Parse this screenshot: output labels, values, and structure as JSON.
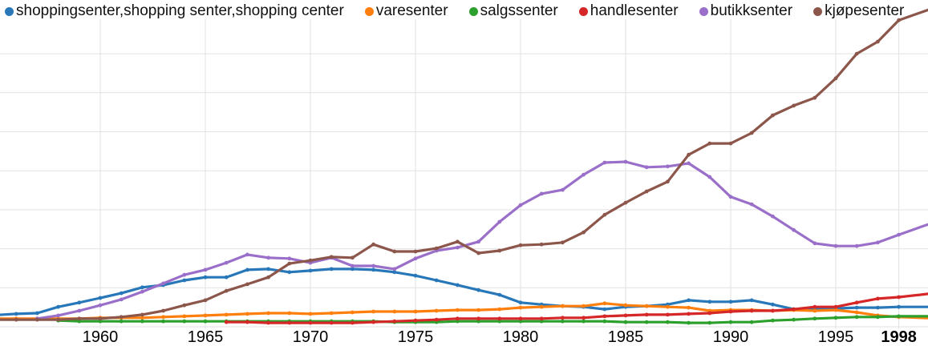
{
  "legend": {
    "items": [
      {
        "id": "shoppingsenter",
        "label": "shoppingsenter,shopping senter,shopping center",
        "color": "#2878b9"
      },
      {
        "id": "varesenter",
        "label": "varesenter",
        "color": "#ff7f0e"
      },
      {
        "id": "salgssenter",
        "label": "salgssenter",
        "color": "#2ca02c"
      },
      {
        "id": "handlesenter",
        "label": "handlesenter",
        "color": "#d62728"
      },
      {
        "id": "butikksenter",
        "label": "butikksenter",
        "color": "#9a6fc9"
      },
      {
        "id": "kjopesenter",
        "label": "kjøpesenter",
        "color": "#8c564b"
      }
    ]
  },
  "chart_data": {
    "type": "line",
    "title": "",
    "xlabel": "",
    "ylabel": "",
    "grid": true,
    "legend_position": "top",
    "y_units": "relative frequency (y axis unlabeled; 1.0 = one horizontal gridline interval)",
    "ylim": [
      0,
      8
    ],
    "xlim": [
      1955,
      1999
    ],
    "x_ticks": [
      {
        "label": "1960",
        "year": 1960,
        "bold": false
      },
      {
        "label": "1965",
        "year": 1965,
        "bold": false
      },
      {
        "label": "1970",
        "year": 1970,
        "bold": false
      },
      {
        "label": "1975",
        "year": 1975,
        "bold": false
      },
      {
        "label": "1980",
        "year": 1980,
        "bold": false
      },
      {
        "label": "1985",
        "year": 1985,
        "bold": false
      },
      {
        "label": "1990",
        "year": 1990,
        "bold": false
      },
      {
        "label": "1995",
        "year": 1995,
        "bold": false
      },
      {
        "label": "1998",
        "year": 1998,
        "bold": true
      }
    ],
    "series": [
      {
        "id": "shoppingsenter",
        "name": "shoppingsenter,shopping senter,shopping center",
        "color": "#2878b9",
        "start_year": 1955,
        "values": [
          0.3,
          0.33,
          0.35,
          0.51,
          0.62,
          0.74,
          0.86,
          1.01,
          1.07,
          1.19,
          1.27,
          1.27,
          1.46,
          1.48,
          1.4,
          1.44,
          1.48,
          1.48,
          1.46,
          1.4,
          1.31,
          1.19,
          1.07,
          0.94,
          0.82,
          0.62,
          0.57,
          0.53,
          0.51,
          0.45,
          0.51,
          0.53,
          0.57,
          0.68,
          0.64,
          0.64,
          0.68,
          0.57,
          0.45,
          0.47,
          0.47,
          0.49,
          0.49,
          0.51,
          0.51
        ]
      },
      {
        "id": "varesenter",
        "name": "varesenter",
        "color": "#ff7f0e",
        "start_year": 1955,
        "values": [
          0.21,
          0.21,
          0.21,
          0.21,
          0.21,
          0.23,
          0.23,
          0.23,
          0.25,
          0.27,
          0.29,
          0.31,
          0.33,
          0.35,
          0.35,
          0.33,
          0.35,
          0.37,
          0.39,
          0.39,
          0.39,
          0.41,
          0.43,
          0.43,
          0.45,
          0.49,
          0.51,
          0.53,
          0.53,
          0.6,
          0.55,
          0.53,
          0.51,
          0.49,
          0.41,
          0.43,
          0.43,
          0.41,
          0.43,
          0.41,
          0.43,
          0.37,
          0.29,
          0.25,
          0.23
        ]
      },
      {
        "id": "salgssenter",
        "name": "salgssenter",
        "color": "#2ca02c",
        "start_year": 1958,
        "values": [
          0.16,
          0.14,
          0.14,
          0.14,
          0.14,
          0.14,
          0.14,
          0.14,
          0.14,
          0.14,
          0.14,
          0.14,
          0.14,
          0.14,
          0.14,
          0.14,
          0.12,
          0.12,
          0.12,
          0.14,
          0.14,
          0.14,
          0.14,
          0.14,
          0.14,
          0.14,
          0.14,
          0.12,
          0.12,
          0.12,
          0.1,
          0.1,
          0.12,
          0.12,
          0.16,
          0.18,
          0.21,
          0.23,
          0.25,
          0.25,
          0.27,
          0.27
        ]
      },
      {
        "id": "handlesenter",
        "name": "handlesenter",
        "color": "#d62728",
        "start_year": 1966,
        "values": [
          0.12,
          0.12,
          0.1,
          0.1,
          0.1,
          0.1,
          0.1,
          0.12,
          0.14,
          0.16,
          0.18,
          0.21,
          0.21,
          0.21,
          0.21,
          0.21,
          0.23,
          0.23,
          0.27,
          0.29,
          0.31,
          0.31,
          0.33,
          0.35,
          0.39,
          0.41,
          0.41,
          0.45,
          0.51,
          0.51,
          0.62,
          0.72,
          0.76,
          0.82
        ]
      },
      {
        "id": "butikksenter",
        "name": "butikksenter",
        "color": "#9a6fc9",
        "start_year": 1957,
        "values": [
          0.21,
          0.29,
          0.41,
          0.55,
          0.7,
          0.9,
          1.11,
          1.33,
          1.46,
          1.64,
          1.85,
          1.77,
          1.75,
          1.64,
          1.77,
          1.56,
          1.56,
          1.48,
          1.75,
          1.95,
          2.03,
          2.18,
          2.69,
          3.12,
          3.41,
          3.51,
          3.9,
          4.21,
          4.23,
          4.09,
          4.11,
          4.19,
          3.84,
          3.33,
          3.14,
          2.83,
          2.48,
          2.14,
          2.07,
          2.07,
          2.16,
          2.36,
          2.55
        ]
      },
      {
        "id": "kjopesenter",
        "name": "kjøpesenter",
        "color": "#8c564b",
        "start_year": 1955,
        "values": [
          0.18,
          0.18,
          0.18,
          0.18,
          0.21,
          0.21,
          0.25,
          0.31,
          0.41,
          0.55,
          0.68,
          0.92,
          1.09,
          1.27,
          1.62,
          1.7,
          1.79,
          1.77,
          2.11,
          1.93,
          1.93,
          2.01,
          2.18,
          1.89,
          1.95,
          2.09,
          2.11,
          2.16,
          2.42,
          2.87,
          3.18,
          3.47,
          3.72,
          4.41,
          4.7,
          4.7,
          4.97,
          5.42,
          5.67,
          5.87,
          6.37,
          7.0,
          7.31,
          7.86,
          8.05
        ]
      }
    ]
  }
}
